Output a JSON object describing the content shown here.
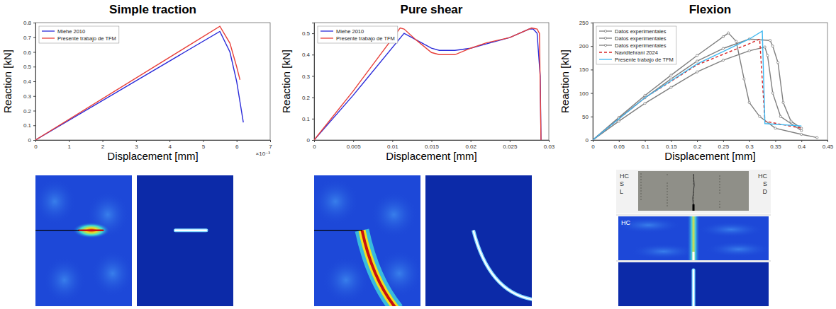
{
  "chart_data": [
    {
      "type": "line",
      "title": "Simple traction",
      "x_label": "Displacement [mm]",
      "y_label": "Reaction [kN]",
      "xlim": [
        0,
        0.007
      ],
      "xticks": [
        0,
        {
          "value": 0.001,
          "label": "1"
        },
        {
          "value": 0.002,
          "label": "2"
        },
        {
          "value": 0.003,
          "label": "3"
        },
        {
          "value": 0.004,
          "label": "4"
        },
        {
          "value": 0.005,
          "label": "5"
        },
        {
          "value": 0.006,
          "label": "6"
        },
        {
          "value": 0.007,
          "label": "7"
        }
      ],
      "ylim": [
        0,
        0.8
      ],
      "yticks": [
        0,
        0.1,
        0.2,
        0.3,
        0.4,
        0.5,
        0.6,
        0.7,
        0.8
      ],
      "annotations": [
        "×10⁻³"
      ],
      "grid": false,
      "legend": "upper left",
      "series": [
        {
          "name": "Miehe 2010",
          "color": "#2b2bd9",
          "line_style": "solid",
          "x": [
            0,
            0.0055,
            0.0058,
            0.006,
            0.0062
          ],
          "values": [
            0,
            0.74,
            0.6,
            0.4,
            0.12
          ]
        },
        {
          "name": "Presente trabajo de TFM",
          "color": "#e8403a",
          "line_style": "solid",
          "x": [
            0,
            0.0055,
            0.0058,
            0.006,
            0.0061
          ],
          "values": [
            0,
            0.775,
            0.66,
            0.5,
            0.41
          ]
        }
      ]
    },
    {
      "type": "line",
      "title": "Pure shear",
      "x_label": "Displacement [mm]",
      "y_label": "Reaction [kN]",
      "xlim": [
        0,
        0.03
      ],
      "xticks": [
        0,
        0.005,
        0.01,
        0.015,
        0.02,
        0.025,
        0.03
      ],
      "ylim": [
        0,
        0.55
      ],
      "yticks": [
        0,
        0.1,
        0.2,
        0.3,
        0.4,
        0.5
      ],
      "grid": false,
      "legend": "upper left",
      "series": [
        {
          "name": "Miehe 2010",
          "color": "#2b2bd9",
          "line_style": "solid",
          "x": [
            0,
            0.005,
            0.0115,
            0.013,
            0.015,
            0.016,
            0.018,
            0.02,
            0.022,
            0.025,
            0.0275,
            0.028,
            0.0285,
            0.0289,
            0.029
          ],
          "values": [
            0,
            0.21,
            0.5,
            0.47,
            0.43,
            0.42,
            0.42,
            0.43,
            0.45,
            0.48,
            0.52,
            0.52,
            0.5,
            0.3,
            0
          ]
        },
        {
          "name": "Presente trabajo de TFM",
          "color": "#e8403a",
          "line_style": "solid",
          "x": [
            0,
            0.005,
            0.011,
            0.0115,
            0.013,
            0.015,
            0.016,
            0.018,
            0.02,
            0.022,
            0.025,
            0.0278,
            0.0285,
            0.0288,
            0.029
          ],
          "values": [
            0,
            0.23,
            0.525,
            0.52,
            0.47,
            0.41,
            0.4,
            0.4,
            0.43,
            0.455,
            0.48,
            0.525,
            0.52,
            0.5,
            0
          ]
        }
      ]
    },
    {
      "type": "line",
      "title": "Flexion",
      "x_label": "Displacement [mm]",
      "y_label": "Reaction [kN]",
      "xlim": [
        0,
        0.45
      ],
      "xticks": [
        0,
        0.05,
        0.1,
        0.15,
        0.2,
        0.25,
        0.3,
        0.35,
        0.4,
        0.45
      ],
      "ylim": [
        0,
        250
      ],
      "yticks": [
        0,
        50,
        100,
        150,
        200,
        250
      ],
      "grid": false,
      "legend": "upper left",
      "series": [
        {
          "name": "Datos experimentales",
          "color": "#7f7f7f",
          "line_style": "solid",
          "marker": "circle",
          "x": [
            0,
            0.05,
            0.1,
            0.15,
            0.2,
            0.25,
            0.26,
            0.275,
            0.29,
            0.3,
            0.32,
            0.35,
            0.4,
            0.43
          ],
          "values": [
            0,
            48,
            95,
            138,
            180,
            220,
            228,
            210,
            130,
            80,
            50,
            25,
            12,
            5
          ]
        },
        {
          "name": "Datos experimentales",
          "color": "#7f7f7f",
          "line_style": "solid",
          "marker": "circle",
          "x": [
            0,
            0.05,
            0.1,
            0.15,
            0.2,
            0.25,
            0.3,
            0.34,
            0.345,
            0.355,
            0.365,
            0.38,
            0.4
          ],
          "values": [
            0,
            46,
            90,
            130,
            168,
            195,
            215,
            212,
            200,
            165,
            80,
            40,
            25
          ]
        },
        {
          "name": "Datos experimentales",
          "color": "#7f7f7f",
          "line_style": "solid",
          "marker": "circle",
          "x": [
            0,
            0.05,
            0.1,
            0.15,
            0.2,
            0.25,
            0.3,
            0.33,
            0.335,
            0.345,
            0.36,
            0.4
          ],
          "values": [
            0,
            40,
            78,
            112,
            145,
            170,
            190,
            198,
            180,
            100,
            50,
            20
          ]
        },
        {
          "name": "Navidtehrani 2024",
          "color": "#d62728",
          "line_style": "dashed",
          "x": [
            0,
            0.1,
            0.2,
            0.3,
            0.32,
            0.33,
            0.4
          ],
          "values": [
            0,
            90,
            160,
            205,
            215,
            40,
            25
          ]
        },
        {
          "name": "Presente trabajo de TFM",
          "color": "#3fb8f0",
          "line_style": "solid",
          "x": [
            0,
            0.1,
            0.2,
            0.3,
            0.325,
            0.33,
            0.4
          ],
          "values": [
            0,
            90,
            162,
            215,
            232,
            35,
            30
          ]
        }
      ]
    }
  ],
  "photo": {
    "left_labels": [
      "HC",
      "S",
      "L"
    ],
    "right_labels": [
      "HC",
      "S",
      "D"
    ],
    "field_label": "HC"
  }
}
